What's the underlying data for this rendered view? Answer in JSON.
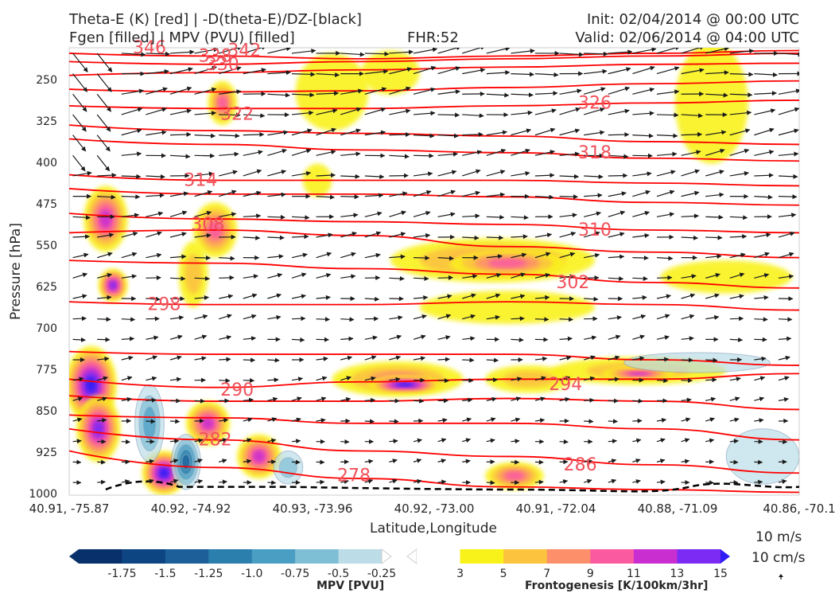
{
  "header": {
    "title_line1": "Theta-E (K) [red] | -D(theta-E)/DZ-[black]",
    "title_line2": "Fgen [filled] | MPV (PVU) [filled]",
    "fhr": "FHR:52",
    "init": "Init: 02/04/2014 @ 00:00 UTC",
    "valid": "Valid: 02/06/2014 @ 04:00 UTC"
  },
  "chart_data": {
    "type": "cross-section",
    "xlabel": "Latitude,Longitude",
    "ylabel": "Pressure [hPa]",
    "x_ticks": [
      "40.91, -75.87",
      "40.92, -74.92",
      "40.93, -73.96",
      "40.92, -73.00",
      "40.91, -72.04",
      "40.88, -71.09",
      "40.86, -70.1"
    ],
    "y_ticks": [
      250,
      325,
      400,
      475,
      550,
      625,
      700,
      775,
      850,
      925,
      1000
    ],
    "ylim": [
      1000,
      190
    ],
    "theta_e_labels": [
      {
        "text": "346",
        "x": 0.11,
        "p": 190
      },
      {
        "text": "338",
        "x": 0.2,
        "p": 205
      },
      {
        "text": "342",
        "x": 0.24,
        "p": 195
      },
      {
        "text": "330",
        "x": 0.21,
        "p": 220
      },
      {
        "text": "322",
        "x": 0.23,
        "p": 310
      },
      {
        "text": "326",
        "x": 0.72,
        "p": 290
      },
      {
        "text": "318",
        "x": 0.72,
        "p": 380
      },
      {
        "text": "314",
        "x": 0.18,
        "p": 430
      },
      {
        "text": "308",
        "x": 0.19,
        "p": 510
      },
      {
        "text": "310",
        "x": 0.72,
        "p": 520
      },
      {
        "text": "302",
        "x": 0.69,
        "p": 615
      },
      {
        "text": "298",
        "x": 0.13,
        "p": 655
      },
      {
        "text": "290",
        "x": 0.23,
        "p": 810
      },
      {
        "text": "294",
        "x": 0.68,
        "p": 800
      },
      {
        "text": "282",
        "x": 0.2,
        "p": 900
      },
      {
        "text": "286",
        "x": 0.7,
        "p": 945
      },
      {
        "text": "278",
        "x": 0.39,
        "p": 965
      }
    ],
    "mpv_colorbar": {
      "ticks": [
        "-1.75",
        "-1.5",
        "-1.25",
        "-1.0",
        "-0.75",
        "-0.5",
        "-0.25"
      ],
      "colors": [
        "#08306b",
        "#0d4582",
        "#1c5f99",
        "#2b7fac",
        "#4a9ec4",
        "#7fbfd6",
        "#bcdde7",
        "#ffffff"
      ],
      "label": "MPV [PVU]"
    },
    "fgen_colorbar": {
      "ticks": [
        "3",
        "5",
        "7",
        "9",
        "11",
        "13",
        "15"
      ],
      "colors": [
        "#ffffff",
        "#f9f21a",
        "#fcc33f",
        "#fd8f6b",
        "#fa5ba0",
        "#c92fd0",
        "#7b2bf3",
        "#2f1df5"
      ],
      "label": "Frontogenesis [K/100km/3hr]"
    },
    "colors": {
      "theta_e": "#ff0000",
      "wind": "#1a1a1a",
      "zero_line": "#000000"
    }
  },
  "wind_scale": {
    "horizontal": "10 m/s",
    "vertical": "10 cm/s"
  }
}
